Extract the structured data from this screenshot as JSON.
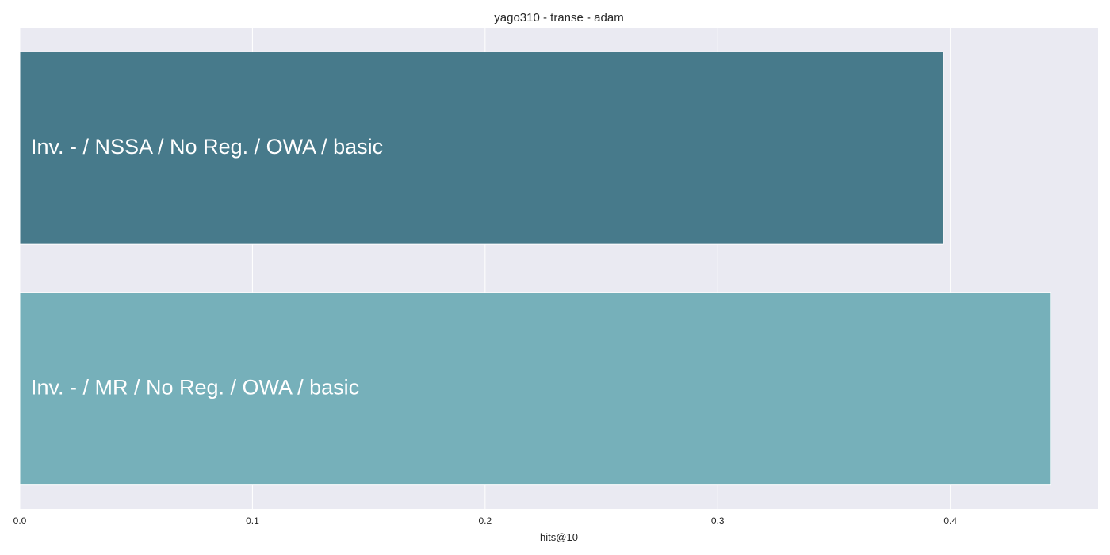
{
  "chart_data": {
    "type": "bar",
    "orientation": "horizontal",
    "title": "yago310 - transe - adam",
    "xlabel": "hits@10",
    "ylabel": "",
    "xlim": [
      0,
      0.4635
    ],
    "xticks": [
      "0.0",
      "0.1",
      "0.2",
      "0.3",
      "0.4"
    ],
    "xtick_values": [
      0,
      0.1,
      0.2,
      0.3,
      0.4
    ],
    "grid": true,
    "categories": [
      "Inv. - / NSSA / No Reg. / OWA / basic",
      "Inv. - / MR / No Reg. / OWA / basic"
    ],
    "values": [
      0.397,
      0.443
    ],
    "colors": [
      "#477a8b",
      "#76b0ba"
    ],
    "background": "#eaeaf2",
    "grid_color": "#ffffff"
  }
}
